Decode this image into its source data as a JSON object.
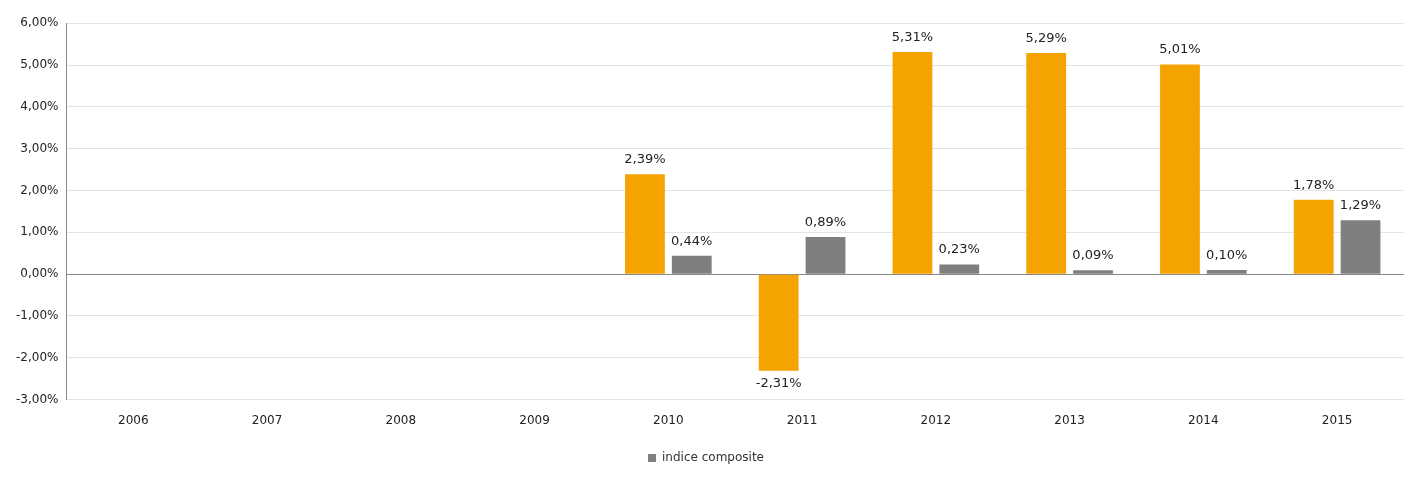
{
  "chart_data": {
    "type": "bar",
    "categories": [
      "2006",
      "2007",
      "2008",
      "2009",
      "2010",
      "2011",
      "2012",
      "2013",
      "2014",
      "2015"
    ],
    "series": [
      {
        "color": "#f5a300",
        "values": [
          null,
          null,
          null,
          null,
          2.39,
          -2.31,
          5.31,
          5.29,
          5.01,
          1.78
        ],
        "value_labels": [
          null,
          null,
          null,
          null,
          "2,39%",
          "-2,31%",
          "5,31%",
          "5,29%",
          "5,01%",
          "1,78%"
        ]
      },
      {
        "name": "indice composite",
        "color": "#7f7f7f",
        "values": [
          null,
          null,
          null,
          null,
          0.44,
          0.89,
          0.23,
          0.09,
          0.1,
          1.29
        ],
        "value_labels": [
          null,
          null,
          null,
          null,
          "0,44%",
          "0,89%",
          "0,23%",
          "0,09%",
          "0,10%",
          "1,29%"
        ]
      }
    ],
    "ylim": [
      -3,
      6
    ],
    "yticks": [
      {
        "value": -3,
        "label": "-3,00%"
      },
      {
        "value": -2,
        "label": "-2,00%"
      },
      {
        "value": -1,
        "label": "-1,00%"
      },
      {
        "value": 0,
        "label": "0,00%"
      },
      {
        "value": 1,
        "label": "1,00%"
      },
      {
        "value": 2,
        "label": "2,00%"
      },
      {
        "value": 3,
        "label": "3,00%"
      },
      {
        "value": 4,
        "label": "4,00%"
      },
      {
        "value": 5,
        "label": "5,00%"
      },
      {
        "value": 6,
        "label": "6,00%"
      }
    ],
    "grid": "y",
    "legend": "bottom"
  }
}
